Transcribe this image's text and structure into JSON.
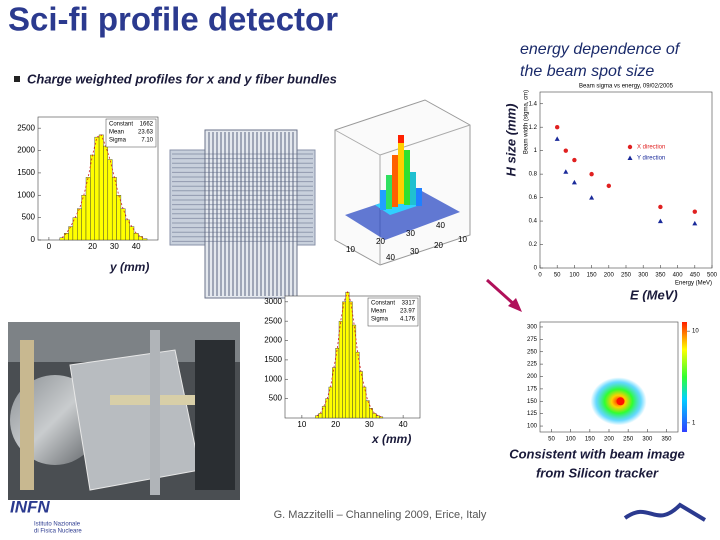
{
  "title": "Sci-fi profile detector",
  "bullet": "Charge weighted profiles for x and y fiber bundles",
  "annotation": [
    "energy dependence of",
    "the beam spot size"
  ],
  "h_size_label": "H size (mm)",
  "y_label": "y (mm)",
  "x_label": "x (mm)",
  "e_label": "E (MeV)",
  "conclusion": [
    "Consistent  with beam image",
    "from Silicon tracker"
  ],
  "footer": "G. Mazzitelli – Channeling 2009, Erice, Italy",
  "logo": {
    "name": "INFN",
    "sub": [
      "Istituto Nazionale",
      "di Fisica Nucleare"
    ]
  },
  "y_profile": {
    "type": "histogram",
    "xlim": [
      -5,
      50
    ],
    "ylim": [
      0,
      2750
    ],
    "xticks": [
      0,
      20,
      30,
      40
    ],
    "yticks": [
      0,
      500,
      1000,
      1500,
      2000,
      2500
    ],
    "bins": [
      5,
      7,
      9,
      11,
      13,
      15,
      17,
      19,
      21,
      23,
      25,
      27,
      29,
      31,
      33,
      35,
      37,
      39,
      41,
      43,
      45
    ],
    "values": [
      50,
      150,
      300,
      500,
      700,
      1000,
      1400,
      1900,
      2300,
      2350,
      2100,
      1800,
      1400,
      1000,
      700,
      450,
      300,
      150,
      80,
      30
    ],
    "color": "#ffff00",
    "stats": [
      [
        "Constant",
        "1662"
      ],
      [
        "Mean",
        "23.63"
      ],
      [
        "Sigma",
        "7.10"
      ]
    ]
  },
  "x_profile": {
    "type": "histogram",
    "xlim": [
      5,
      45
    ],
    "ylim": [
      0,
      3150
    ],
    "xticks": [
      10,
      20,
      30,
      40
    ],
    "yticks": [
      500,
      1000,
      1500,
      2000,
      2500,
      3000
    ],
    "bins": [
      14,
      15,
      16,
      17,
      18,
      19,
      20,
      21,
      22,
      23,
      24,
      25,
      26,
      27,
      28,
      29,
      30,
      31,
      32,
      33,
      34
    ],
    "values": [
      60,
      120,
      300,
      500,
      800,
      1300,
      1800,
      2500,
      3000,
      3250,
      3000,
      2400,
      1700,
      1200,
      800,
      450,
      250,
      120,
      60,
      30
    ],
    "color": "#ffff00",
    "stats": [
      [
        "Constant",
        "3317"
      ],
      [
        "Mean",
        "23.97"
      ],
      [
        "Sigma",
        "4.176"
      ]
    ]
  },
  "lego": {
    "xticks": [
      10,
      20,
      30,
      40
    ],
    "yticks": [
      10,
      20,
      30,
      40
    ]
  },
  "energy_plot": {
    "type": "scatter",
    "title": "Beam sigma vs energy, 09/02/2005",
    "xlabel": "Energy (MeV)",
    "ylabel": "Beam width (sigma, cm)",
    "xlim": [
      0,
      500
    ],
    "ylim": [
      0,
      1.5
    ],
    "xticks": [
      0,
      50,
      100,
      150,
      200,
      250,
      300,
      350,
      400,
      450,
      500
    ],
    "yticks": [
      0,
      0.2,
      0.4,
      0.6,
      0.8,
      1,
      1.2,
      1.4
    ],
    "series": [
      {
        "name": "X direction",
        "color": "#e02020",
        "marker": "circle",
        "x": [
          50,
          75,
          100,
          150,
          200,
          350,
          450
        ],
        "values": [
          1.2,
          1.0,
          0.92,
          0.8,
          0.7,
          0.52,
          0.48
        ]
      },
      {
        "name": "Y direction",
        "color": "#1a2a9a",
        "marker": "triangle",
        "x": [
          50,
          75,
          100,
          150,
          350,
          450
        ],
        "values": [
          1.1,
          0.82,
          0.73,
          0.6,
          0.4,
          0.38
        ]
      }
    ]
  },
  "silicon_plot": {
    "xlim": [
      20,
      380
    ],
    "ylim": [
      88,
      310
    ],
    "xticks": [
      50,
      100,
      150,
      200,
      250,
      300,
      350
    ],
    "yticks": [
      100,
      125,
      150,
      175,
      200,
      225,
      250,
      275,
      300
    ],
    "colorbar_ticks": [
      1,
      10
    ]
  }
}
